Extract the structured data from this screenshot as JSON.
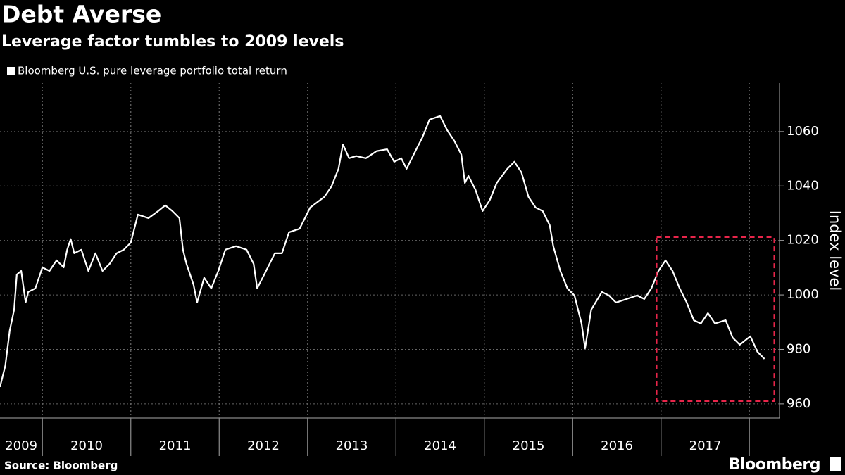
{
  "chart_data": {
    "type": "line",
    "title": "Debt Averse",
    "subtitle": "Leverage factor tumbles to 2009 levels",
    "y_label": "Index level",
    "source": "Source: Bloomberg",
    "brand": "Bloomberg",
    "x": [
      2009.52,
      2009.58,
      2009.63,
      2009.68,
      2009.71,
      2009.76,
      2009.81,
      2009.84,
      2009.92,
      2010.0,
      2010.08,
      2010.16,
      2010.24,
      2010.28,
      2010.32,
      2010.36,
      2010.44,
      2010.52,
      2010.6,
      2010.68,
      2010.76,
      2010.84,
      2010.92,
      2011.0,
      2011.08,
      2011.2,
      2011.31,
      2011.39,
      2011.47,
      2011.55,
      2011.59,
      2011.63,
      2011.71,
      2011.75,
      2011.83,
      2011.91,
      2011.99,
      2012.07,
      2012.19,
      2012.31,
      2012.39,
      2012.43,
      2012.51,
      2012.63,
      2012.71,
      2012.79,
      2012.91,
      2013.03,
      2013.19,
      2013.27,
      2013.35,
      2013.4,
      2013.47,
      2013.55,
      2013.66,
      2013.78,
      2013.9,
      2013.98,
      2014.06,
      2014.12,
      2014.22,
      2014.3,
      2014.38,
      2014.5,
      2014.58,
      2014.66,
      2014.74,
      2014.78,
      2014.82,
      2014.9,
      2014.98,
      2015.06,
      2015.14,
      2015.26,
      2015.34,
      2015.42,
      2015.5,
      2015.58,
      2015.66,
      2015.74,
      2015.78,
      2015.86,
      2015.94,
      2016.02,
      2016.1,
      2016.14,
      2016.21,
      2016.33,
      2016.41,
      2016.49,
      2016.61,
      2016.73,
      2016.81,
      2016.89,
      2016.97,
      2017.05,
      2017.13,
      2017.21,
      2017.29,
      2017.37,
      2017.45,
      2017.53,
      2017.61,
      2017.73,
      2017.81,
      2017.89,
      2018.01,
      2018.09,
      2018.17
    ],
    "series": [
      {
        "name": "Bloomberg U.S. pure leverage portfolio total return",
        "color": "#ffffff",
        "values": [
          966.2,
          974.0,
          986.9,
          994.6,
          1007.5,
          1008.8,
          997.2,
          1001.1,
          1002.4,
          1010.1,
          1008.8,
          1012.7,
          1010.1,
          1016.6,
          1020.5,
          1015.3,
          1016.6,
          1008.8,
          1015.3,
          1008.8,
          1011.4,
          1015.3,
          1016.6,
          1019.2,
          1029.5,
          1028.2,
          1030.8,
          1032.9,
          1030.8,
          1028.2,
          1016.6,
          1011.4,
          1003.7,
          997.2,
          1006.3,
          1002.4,
          1008.8,
          1016.6,
          1017.9,
          1016.6,
          1011.4,
          1002.4,
          1007.5,
          1015.3,
          1015.3,
          1023.0,
          1024.3,
          1032.1,
          1036.0,
          1039.8,
          1046.3,
          1055.3,
          1050.2,
          1051.0,
          1050.2,
          1052.8,
          1053.5,
          1048.9,
          1050.2,
          1046.3,
          1052.8,
          1057.9,
          1064.4,
          1065.7,
          1060.5,
          1056.6,
          1051.5,
          1041.1,
          1043.7,
          1038.6,
          1030.8,
          1034.7,
          1041.1,
          1046.3,
          1048.9,
          1045.0,
          1036.0,
          1032.1,
          1030.8,
          1025.6,
          1017.9,
          1008.8,
          1002.4,
          999.8,
          989.5,
          980.4,
          994.6,
          1001.1,
          999.8,
          997.2,
          998.5,
          999.8,
          998.5,
          1002.4,
          1008.8,
          1012.7,
          1008.8,
          1002.4,
          997.2,
          990.7,
          989.5,
          993.3,
          989.5,
          990.7,
          984.3,
          981.7,
          984.8,
          979.1,
          976.5
        ]
      }
    ],
    "xlim": [
      2009.52,
      2018.34
    ],
    "xticks": [
      2009,
      2010,
      2011,
      2012,
      2013,
      2014,
      2015,
      2016,
      2017
    ],
    "ylim": [
      954.8,
      1077.8
    ],
    "yticks": [
      960,
      980,
      1000,
      1020,
      1040,
      1060
    ],
    "grid": true,
    "highlight": {
      "x": [
        2016.95,
        2018.28
      ],
      "y": [
        961.0,
        1021.2
      ],
      "color": "#e8254a"
    }
  }
}
